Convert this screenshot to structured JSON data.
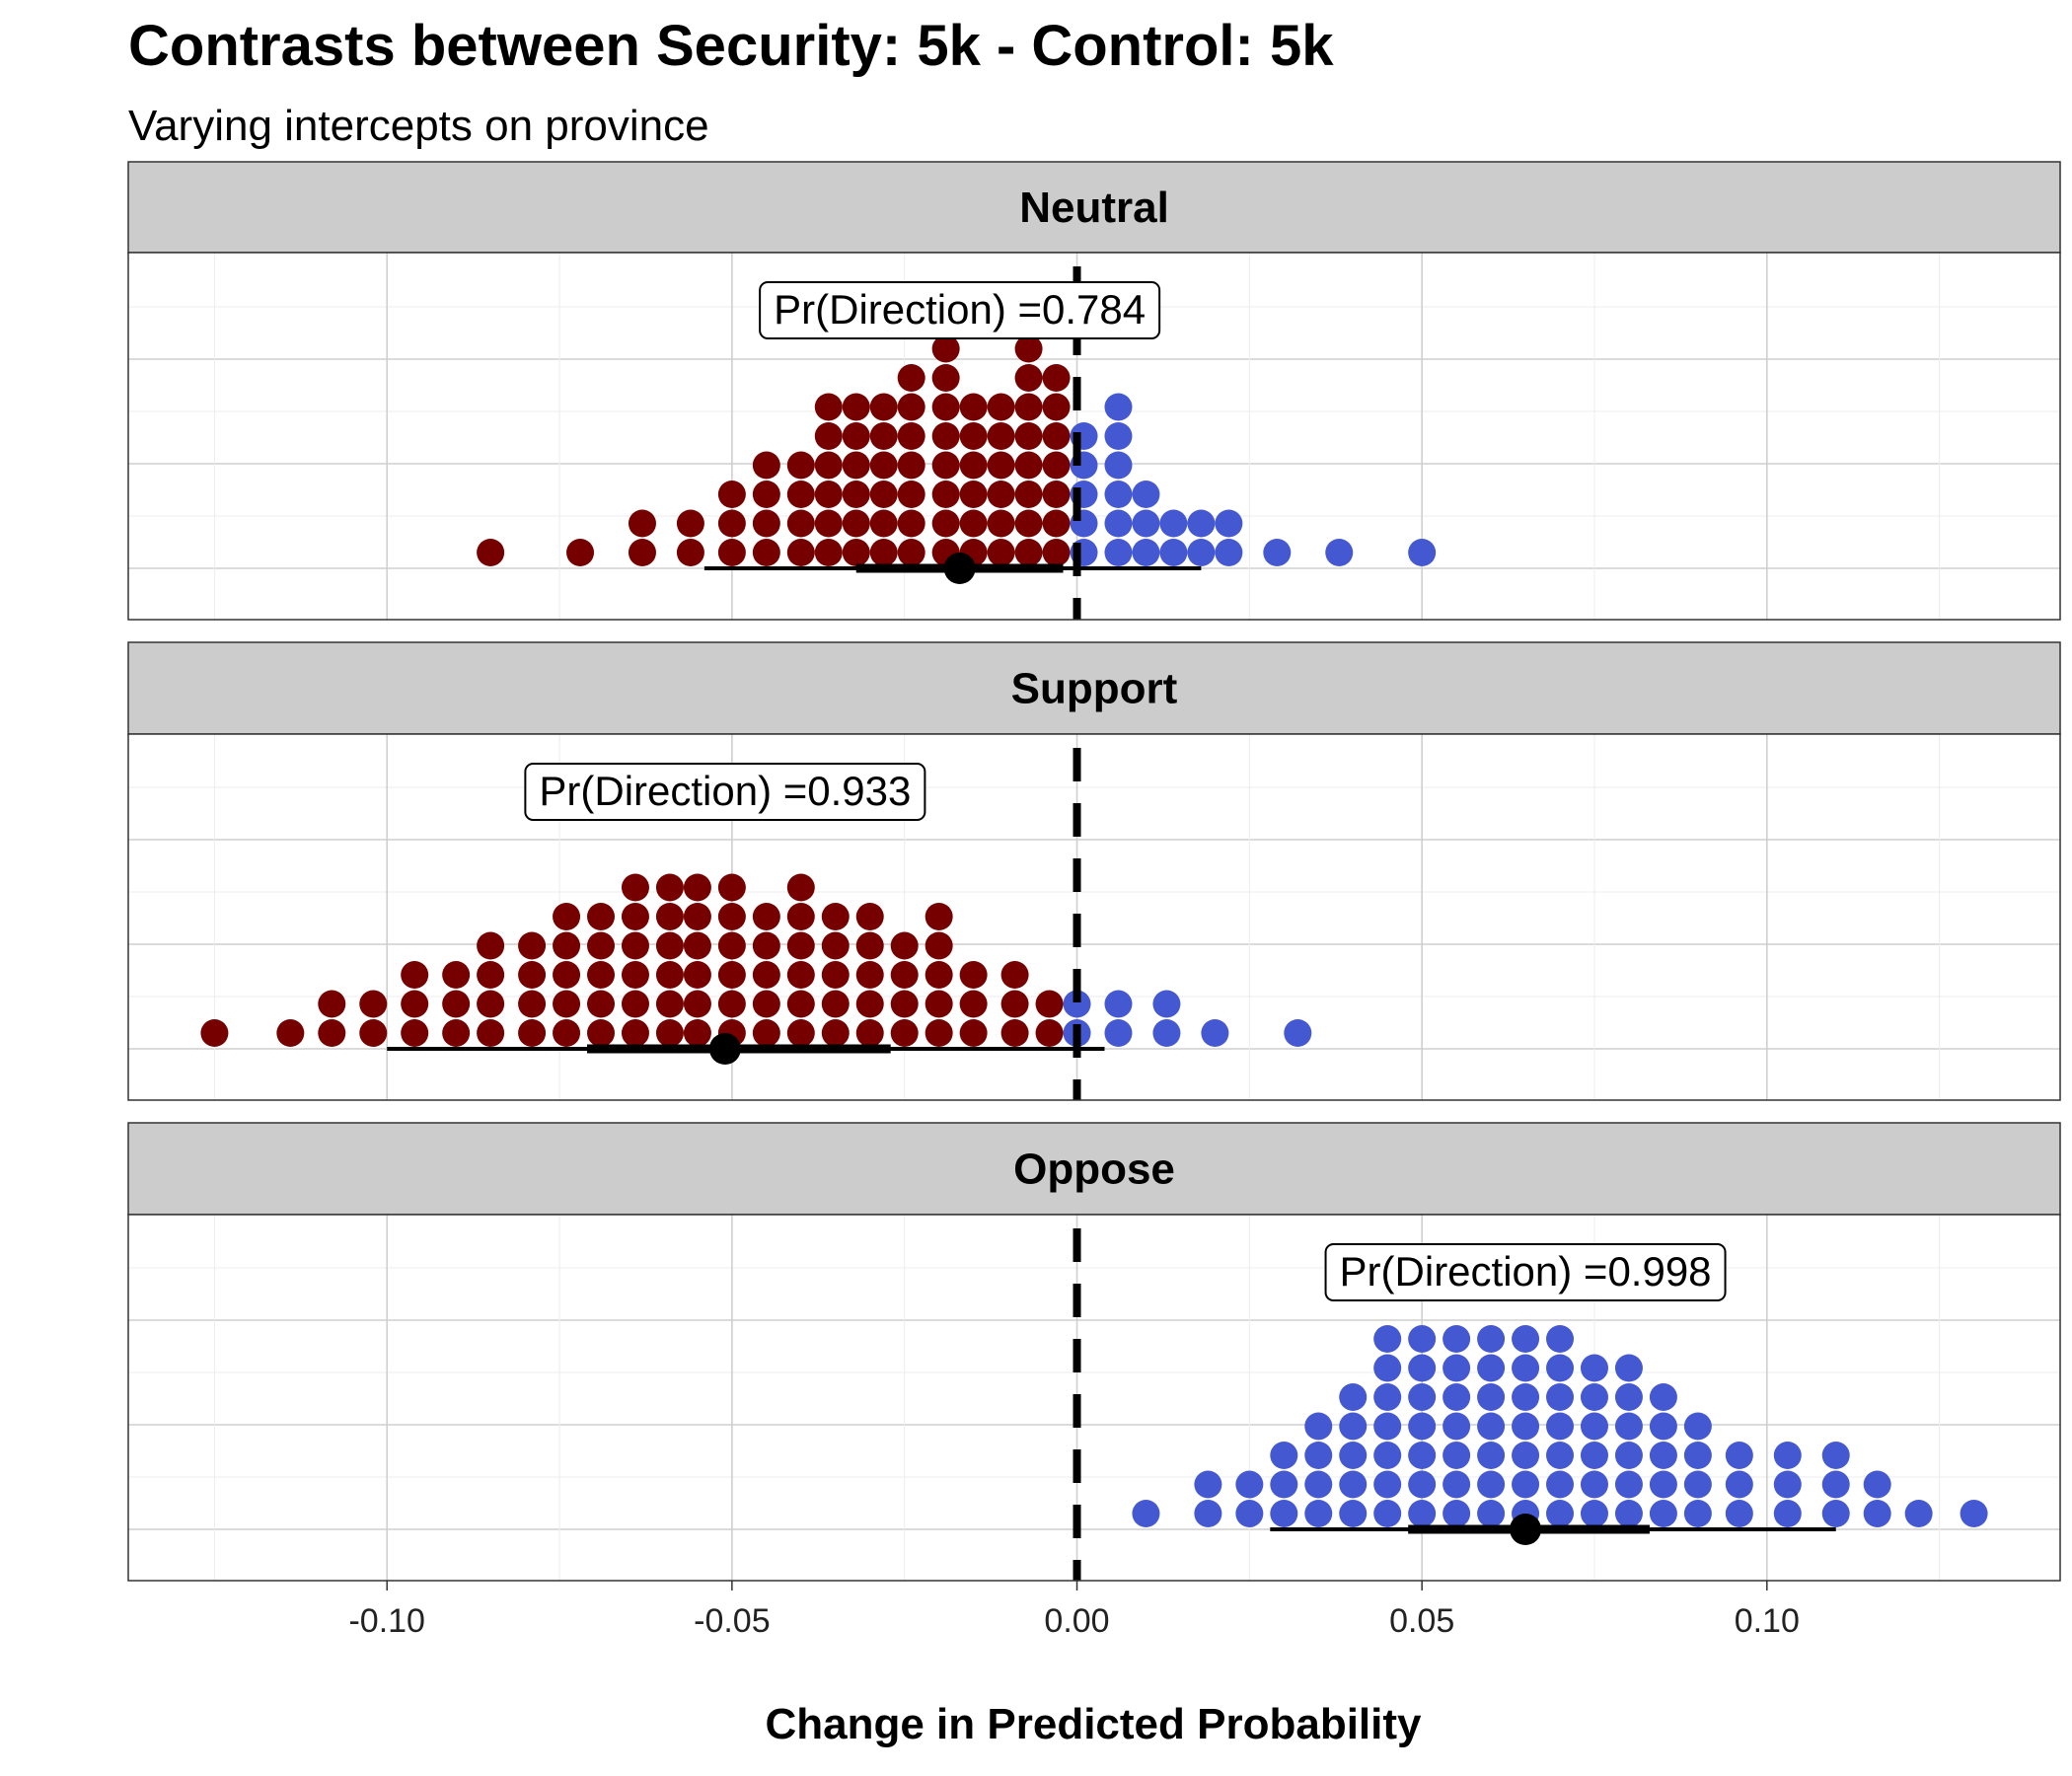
{
  "chart_data": {
    "type": "dotplot",
    "title": "Contrasts between Security: 5k - Control: 5k",
    "subtitle": "Varying intercepts on province",
    "xlabel": "Change in Predicted Probability",
    "xlim": [
      -0.1375,
      0.1425
    ],
    "xticks": [
      -0.1,
      -0.05,
      0.0,
      0.05,
      0.1
    ],
    "xtick_labels": [
      "-0.10",
      "-0.05",
      "0.00",
      "0.05",
      "0.10"
    ],
    "reference_line": 0,
    "colors": {
      "negative": "#760000",
      "positive": "#4458d2",
      "strip_bg": "#cccccc",
      "grid": "#d9d9d9"
    },
    "panels": [
      {
        "label": "Neutral",
        "annotation": "Pr(Direction) =0.784",
        "annotation_x": -0.017,
        "point_estimate": -0.017,
        "interval_inner": [
          -0.032,
          -0.002
        ],
        "interval_outer": [
          -0.054,
          0.018
        ],
        "dot_bins": [
          {
            "x": -0.085,
            "n": 1
          },
          {
            "x": -0.072,
            "n": 1
          },
          {
            "x": -0.063,
            "n": 2
          },
          {
            "x": -0.056,
            "n": 2
          },
          {
            "x": -0.05,
            "n": 3
          },
          {
            "x": -0.045,
            "n": 4
          },
          {
            "x": -0.04,
            "n": 4
          },
          {
            "x": -0.036,
            "n": 6
          },
          {
            "x": -0.032,
            "n": 6
          },
          {
            "x": -0.028,
            "n": 6
          },
          {
            "x": -0.024,
            "n": 7
          },
          {
            "x": -0.019,
            "n": 8
          },
          {
            "x": -0.015,
            "n": 6
          },
          {
            "x": -0.011,
            "n": 6
          },
          {
            "x": -0.007,
            "n": 8
          },
          {
            "x": -0.003,
            "n": 7
          },
          {
            "x": 0.001,
            "n": 5
          },
          {
            "x": 0.006,
            "n": 6
          },
          {
            "x": 0.01,
            "n": 3
          },
          {
            "x": 0.014,
            "n": 2
          },
          {
            "x": 0.018,
            "n": 2
          },
          {
            "x": 0.022,
            "n": 2
          },
          {
            "x": 0.029,
            "n": 1
          },
          {
            "x": 0.038,
            "n": 1
          },
          {
            "x": 0.05,
            "n": 1
          }
        ]
      },
      {
        "label": "Support",
        "annotation": "Pr(Direction) =0.933",
        "annotation_x": -0.051,
        "point_estimate": -0.051,
        "interval_inner": [
          -0.071,
          -0.027
        ],
        "interval_outer": [
          -0.1,
          0.004
        ],
        "dot_bins": [
          {
            "x": -0.125,
            "n": 1
          },
          {
            "x": -0.114,
            "n": 1
          },
          {
            "x": -0.108,
            "n": 2
          },
          {
            "x": -0.102,
            "n": 2
          },
          {
            "x": -0.096,
            "n": 3
          },
          {
            "x": -0.09,
            "n": 3
          },
          {
            "x": -0.085,
            "n": 4
          },
          {
            "x": -0.079,
            "n": 4
          },
          {
            "x": -0.074,
            "n": 5
          },
          {
            "x": -0.069,
            "n": 5
          },
          {
            "x": -0.064,
            "n": 6
          },
          {
            "x": -0.059,
            "n": 6
          },
          {
            "x": -0.055,
            "n": 6
          },
          {
            "x": -0.05,
            "n": 6
          },
          {
            "x": -0.045,
            "n": 5
          },
          {
            "x": -0.04,
            "n": 6
          },
          {
            "x": -0.035,
            "n": 5
          },
          {
            "x": -0.03,
            "n": 5
          },
          {
            "x": -0.025,
            "n": 4
          },
          {
            "x": -0.02,
            "n": 5
          },
          {
            "x": -0.015,
            "n": 3
          },
          {
            "x": -0.009,
            "n": 3
          },
          {
            "x": -0.004,
            "n": 2
          },
          {
            "x": 0.0,
            "n": 2
          },
          {
            "x": 0.006,
            "n": 2
          },
          {
            "x": 0.013,
            "n": 2
          },
          {
            "x": 0.02,
            "n": 1
          },
          {
            "x": 0.032,
            "n": 1
          }
        ]
      },
      {
        "label": "Oppose",
        "annotation": "Pr(Direction) =0.998",
        "annotation_x": 0.065,
        "point_estimate": 0.065,
        "interval_inner": [
          0.048,
          0.083
        ],
        "interval_outer": [
          0.028,
          0.11
        ],
        "dot_bins": [
          {
            "x": 0.01,
            "n": 1
          },
          {
            "x": 0.019,
            "n": 2
          },
          {
            "x": 0.025,
            "n": 2
          },
          {
            "x": 0.03,
            "n": 3
          },
          {
            "x": 0.035,
            "n": 4
          },
          {
            "x": 0.04,
            "n": 5
          },
          {
            "x": 0.045,
            "n": 7
          },
          {
            "x": 0.05,
            "n": 7
          },
          {
            "x": 0.055,
            "n": 7
          },
          {
            "x": 0.06,
            "n": 7
          },
          {
            "x": 0.065,
            "n": 7
          },
          {
            "x": 0.07,
            "n": 7
          },
          {
            "x": 0.075,
            "n": 6
          },
          {
            "x": 0.08,
            "n": 6
          },
          {
            "x": 0.085,
            "n": 5
          },
          {
            "x": 0.09,
            "n": 4
          },
          {
            "x": 0.096,
            "n": 3
          },
          {
            "x": 0.103,
            "n": 3
          },
          {
            "x": 0.11,
            "n": 3
          },
          {
            "x": 0.116,
            "n": 2
          },
          {
            "x": 0.122,
            "n": 1
          },
          {
            "x": 0.13,
            "n": 1
          }
        ]
      }
    ]
  }
}
